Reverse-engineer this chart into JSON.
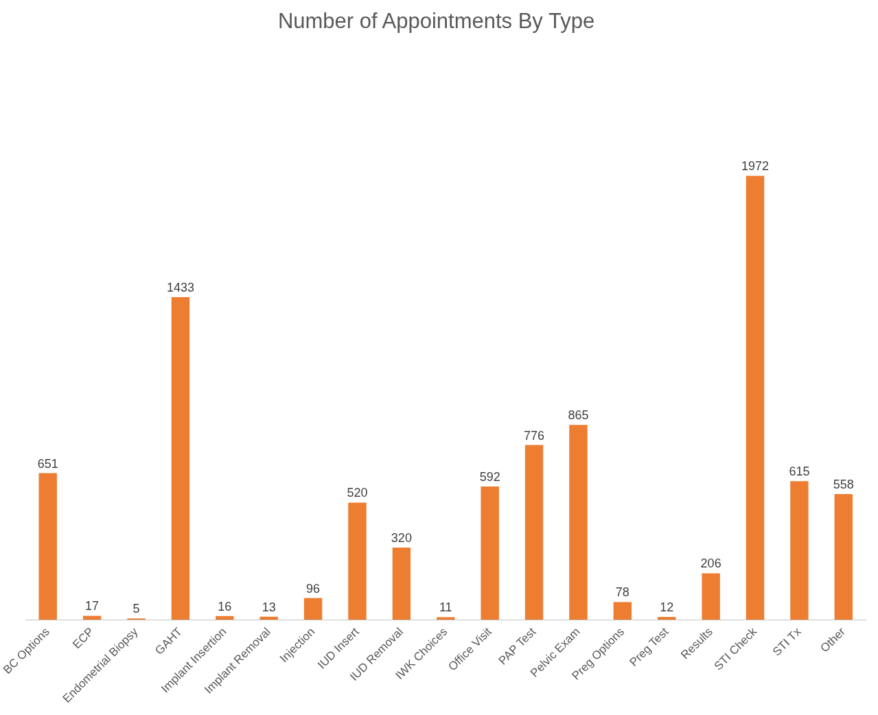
{
  "chart_data": {
    "type": "bar",
    "title": "Number of Appointments By Type",
    "categories": [
      "BC Options",
      "ECP",
      "Endometrial Biopsy",
      "GAHT",
      "Implant Insertion",
      "Implant Removal",
      "Injection",
      "IUD Insert",
      "IUD Removal",
      "IWK Choices",
      "Office Visit",
      "PAP Test",
      "Pelvic Exam",
      "Preg Options",
      "Preg Test",
      "Results",
      "STI Check",
      "STI Tx",
      "Other"
    ],
    "values": [
      651,
      17,
      5,
      1433,
      16,
      13,
      96,
      520,
      320,
      11,
      592,
      776,
      865,
      78,
      12,
      206,
      1972,
      615,
      558
    ],
    "color": "#ed7d31",
    "data_labels": true,
    "grid": false,
    "legend": false,
    "tick_labels": "x"
  }
}
